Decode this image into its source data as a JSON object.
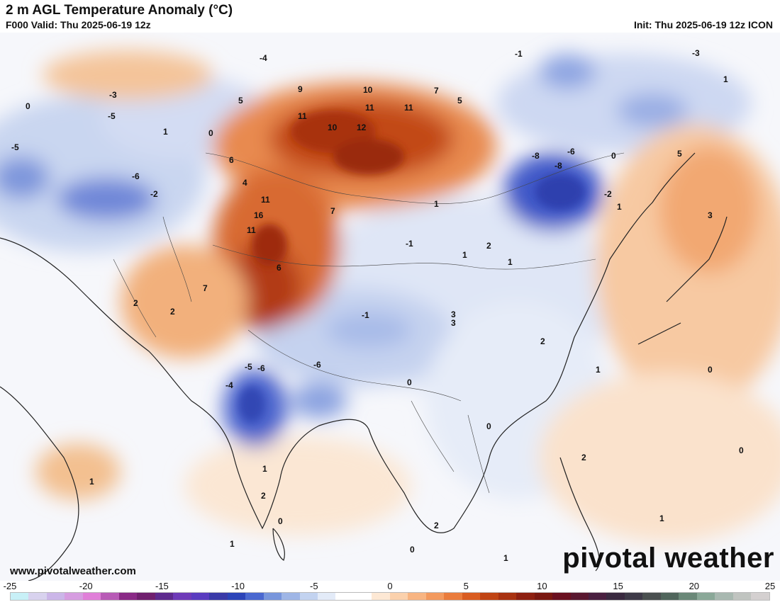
{
  "header": {
    "title": "2 m AGL Temperature Anomaly (°C)",
    "valid": "F000 Valid: Thu 2025-06-19 12z",
    "init": "Init: Thu 2025-06-19 12z ICON"
  },
  "footer": {
    "website": "www.pivotalweather.com",
    "brand": "pivotal weather"
  },
  "legend": {
    "ticks": [
      "-25",
      "-20",
      "-15",
      "-10",
      "-5",
      "0",
      "5",
      "10",
      "15",
      "20",
      "25"
    ],
    "colors": [
      "#c8f0f7",
      "#d8d2ee",
      "#cbb6e8",
      "#d69de0",
      "#e07fd8",
      "#b85bb6",
      "#8a2a86",
      "#70206e",
      "#5e2a8e",
      "#6e3ab8",
      "#5a3cc0",
      "#3a3aa8",
      "#2c44b8",
      "#4a68d0",
      "#7896dc",
      "#9fb6e6",
      "#c3d3f0",
      "#e3ebf8",
      "#ffffff",
      "#ffffff",
      "#fde8d4",
      "#fbd1ac",
      "#f8b582",
      "#f39a5e",
      "#ea7c3c",
      "#d95c20",
      "#c04414",
      "#a83210",
      "#8e2010",
      "#7a1810",
      "#6a1020",
      "#5a1830",
      "#4a2040",
      "#3a2a40",
      "#3e3a48",
      "#4a5050",
      "#50665c",
      "#6a8878",
      "#8aa898",
      "#a8b8b0",
      "#c0c4c0",
      "#d4d0d0"
    ]
  },
  "map_labels": {
    "warm": [
      "9",
      "10",
      "7",
      "11",
      "11",
      "12",
      "11",
      "10",
      "16",
      "11",
      "11",
      "7",
      "6",
      "5",
      "5",
      "7",
      "5",
      "3",
      "4",
      "6"
    ],
    "cold": [
      "-8",
      "-6",
      "-8",
      "-6",
      "-5",
      "-6",
      "-5",
      "-6",
      "-4",
      "-3",
      "-5",
      "-4",
      "-3",
      "-2",
      "-1",
      "-1",
      "-2",
      "-1"
    ],
    "neutral": [
      "0",
      "1",
      "2",
      "1",
      "0",
      "1",
      "2",
      "3",
      "1",
      "0",
      "1",
      "2",
      "0",
      "1",
      "0",
      "1",
      "2",
      "1",
      "0",
      "3",
      "2",
      "1",
      "0",
      "1",
      "2",
      "1",
      "0",
      "1",
      "2",
      "0"
    ]
  }
}
